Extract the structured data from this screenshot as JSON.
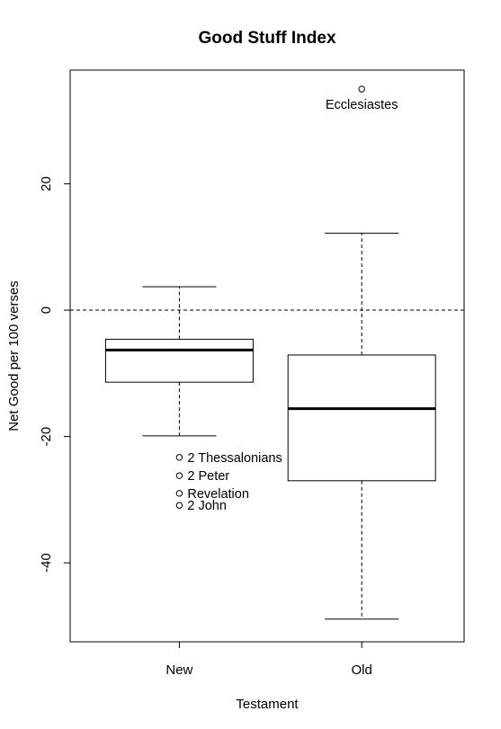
{
  "chart_data": {
    "type": "box",
    "title": "Good Stuff Index",
    "xlabel": "Testament",
    "ylabel": "Net Good per 100 verses",
    "categories": [
      "New",
      "Old"
    ],
    "ylim": [
      -52.5,
      38
    ],
    "yticks": [
      -40,
      -20,
      0,
      20
    ],
    "reference_line": {
      "y": 0,
      "style": "dashed"
    },
    "boxes": [
      {
        "category": "New",
        "whisker_low": -19.9,
        "q1": -11.4,
        "median": -6.3,
        "q3": -4.6,
        "whisker_high": 3.7,
        "outliers": [
          {
            "value": -23.3,
            "label": "2 Thessalonians"
          },
          {
            "value": -26.2,
            "label": "2 Peter"
          },
          {
            "value": -29.0,
            "label": "Revelation"
          },
          {
            "value": -30.9,
            "label": "2 John"
          }
        ]
      },
      {
        "category": "Old",
        "whisker_low": -48.9,
        "q1": -27.0,
        "median": -15.6,
        "q3": -7.1,
        "whisker_high": 12.2,
        "outliers": [
          {
            "value": 35.0,
            "label": "Ecclesiastes"
          }
        ]
      }
    ],
    "grid": false,
    "legend": "none"
  }
}
